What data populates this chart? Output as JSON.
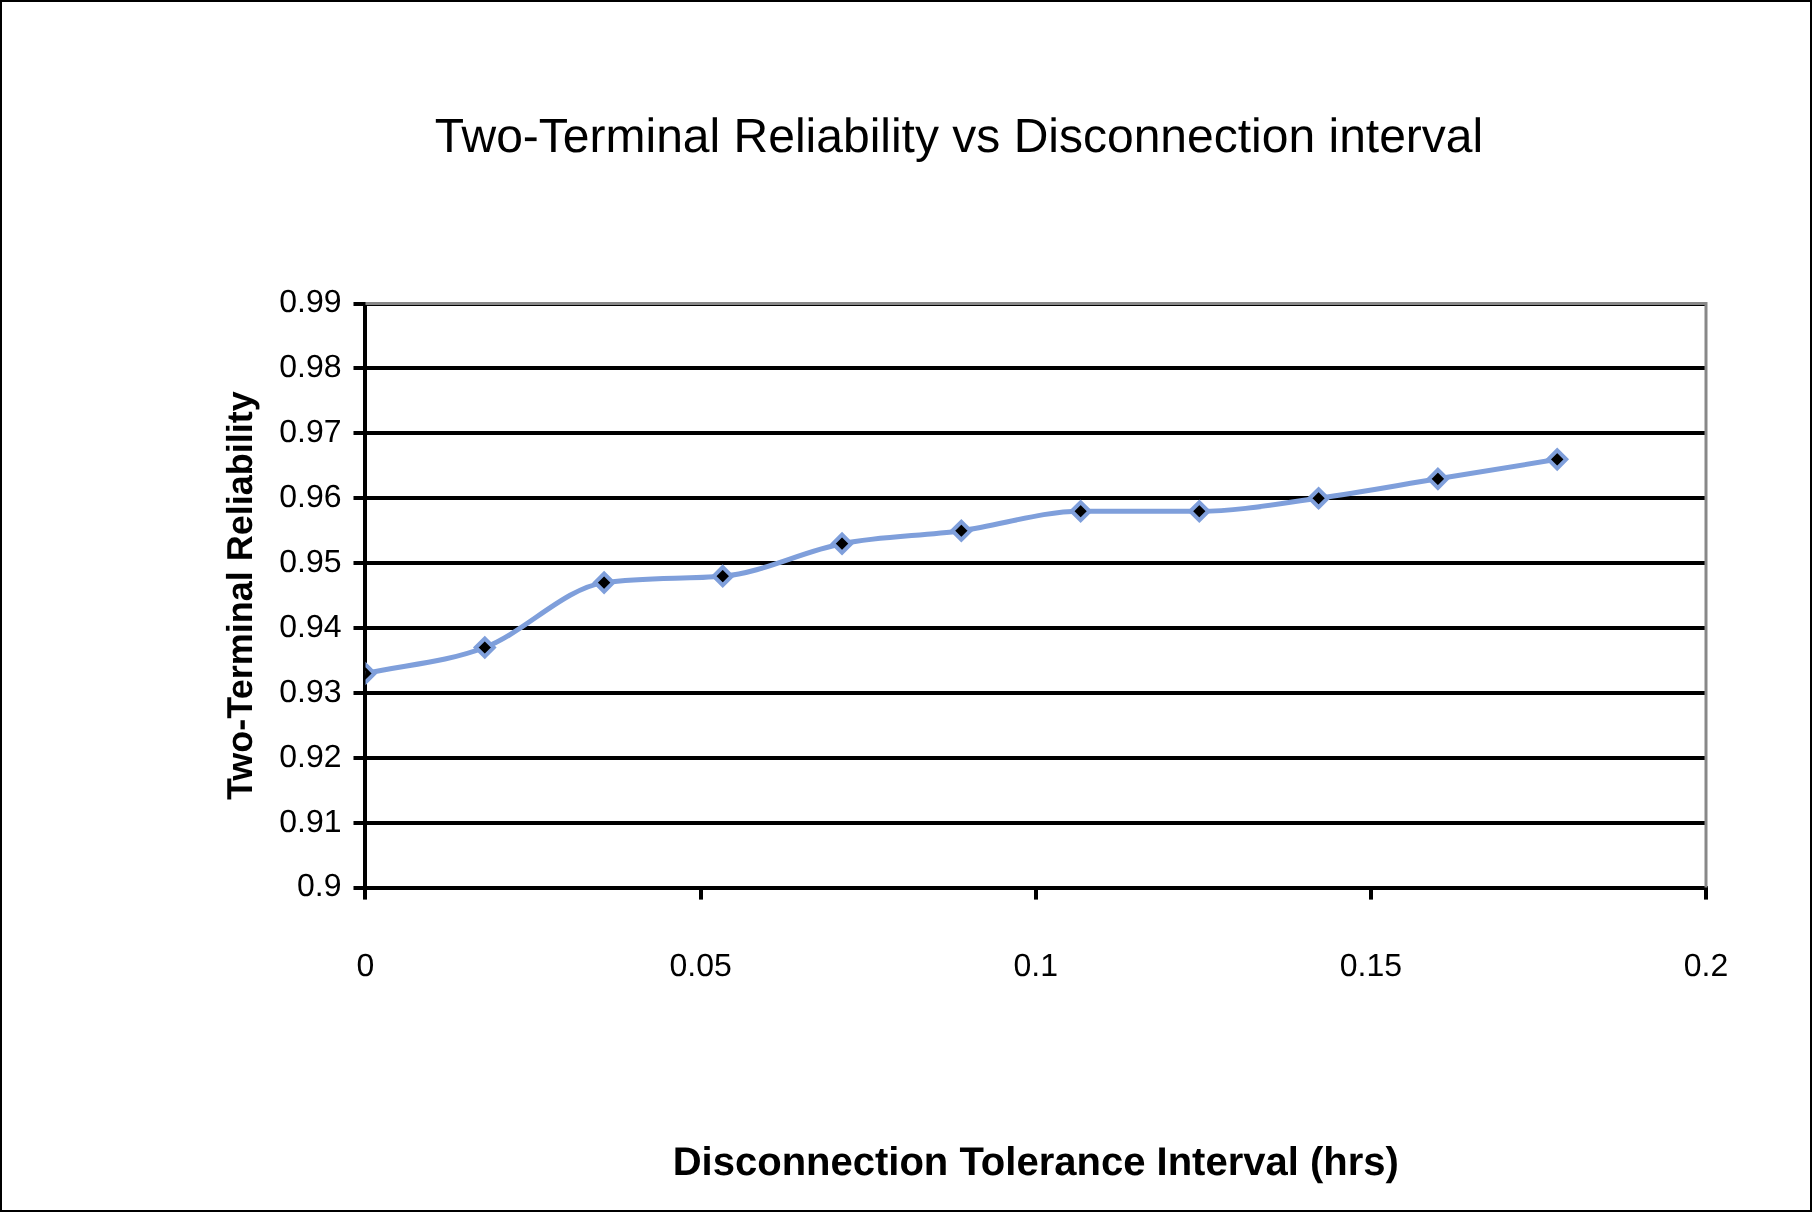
{
  "chart_data": {
    "type": "line",
    "title": "Two-Terminal Reliability vs Disconnection interval",
    "xlabel": "Disconnection Tolerance Interval (hrs)",
    "ylabel": "Two-Terminal Reliability",
    "x": [
      0,
      0.0178,
      0.0356,
      0.0533,
      0.0711,
      0.0889,
      0.1067,
      0.1244,
      0.1422,
      0.16,
      0.1778
    ],
    "series": [
      {
        "color": "#7f9fdb",
        "values": [
          0.933,
          0.937,
          0.947,
          0.948,
          0.953,
          0.955,
          0.958,
          0.958,
          0.96,
          0.963,
          0.966
        ]
      }
    ],
    "xlim": [
      0,
      0.2
    ],
    "xticks": [
      0,
      0.05,
      0.1,
      0.15,
      0.2
    ],
    "ylim": [
      0.9,
      0.99
    ],
    "yticks": [
      0.9,
      0.91,
      0.92,
      0.93,
      0.94,
      0.95,
      0.96,
      0.97,
      0.98,
      0.99
    ],
    "grid": "y",
    "legend": false,
    "marker": "diamond",
    "line_style": "solid"
  }
}
